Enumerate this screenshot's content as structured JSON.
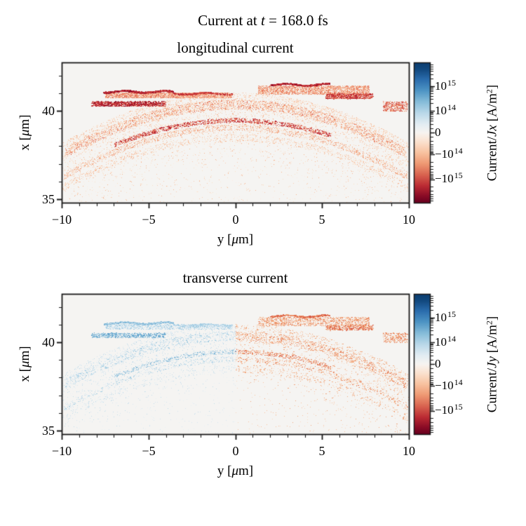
{
  "figure": {
    "suptitle": {
      "prefix": "Current at ",
      "var": "t",
      "suffix": " = 168.0 fs"
    }
  },
  "colors": {
    "background": "#ffffff",
    "plot_bg": "#f5f4f2",
    "spine": "#1a1a1a",
    "text": "#000000",
    "colormap_name": "RdBu (blue = positive, red = negative)",
    "palette_neg": [
      "#fceadd",
      "#fadcc6",
      "#f8c8a9",
      "#f4ac85",
      "#ee8a64",
      "#e06450",
      "#cb3e3c",
      "#b2182b",
      "#8a0a25"
    ],
    "palette_blue": [
      "#e4eff6",
      "#d2e5f0",
      "#b9d7e9",
      "#9ac8e0",
      "#77b1d4",
      "#4f97c7"
    ],
    "palette_pos": [
      "#fceadd",
      "#f9d6bd",
      "#f6bd97",
      "#f09e72",
      "#e57853",
      "#d65542"
    ]
  },
  "chart_data": [
    {
      "type": "scatter",
      "title": "longitudinal current",
      "sign": "negative",
      "pos_boost": 0,
      "x_axis": {
        "label_pre": "y [",
        "label_mu": "μ",
        "label_post": "m]",
        "range": [
          -10,
          10
        ],
        "major_ticks": [
          -10,
          -5,
          0,
          5,
          10
        ],
        "tick_labels": [
          "−10",
          "−5",
          "0",
          "5",
          "10"
        ],
        "minor_step": 1
      },
      "y_axis": {
        "label_pre": "x [",
        "label_mu": "μ",
        "label_post": "m]",
        "range": [
          34.8,
          42.75
        ],
        "major_ticks": [
          35,
          40
        ],
        "tick_labels": [
          "35",
          "40"
        ],
        "minor_step": 1
      },
      "colorbar": {
        "label": {
          "prefix": "Current/",
          "var": "Jx",
          "unit_pre": " [A/m",
          "unit_sup": "2",
          "unit_post": "]"
        },
        "scale": "symlog",
        "values": [
          1000000000000000.0,
          100000000000000.0,
          0,
          -100000000000000.0,
          -1000000000000000.0
        ],
        "ticks": [
          {
            "base": "10",
            "exp": "15"
          },
          {
            "base": "10",
            "exp": "14"
          },
          {
            "base": "0",
            "exp": ""
          },
          {
            "base": "−10",
            "exp": "14"
          },
          {
            "base": "−10",
            "exp": "15"
          }
        ],
        "colormap": "RdBu"
      },
      "arc": {
        "apex": 41.35,
        "curv": 0.0285
      },
      "structures": [
        {
          "type": "slab",
          "y": [
            -7.5,
            -0.2
          ],
          "x": [
            40.75,
            41.05
          ],
          "n": 2400,
          "i": [
            2,
            5
          ]
        },
        {
          "type": "edge",
          "y": [
            -7.6,
            -3.6
          ],
          "x0": 41.1,
          "jit": 0.1,
          "n": 800,
          "i": [
            6,
            8
          ]
        },
        {
          "type": "edge",
          "y": [
            -3.6,
            -0.2
          ],
          "x0": 41.0,
          "jit": 0.08,
          "n": 450,
          "i": [
            5,
            7
          ]
        },
        {
          "type": "slab",
          "y": [
            1.3,
            7.7
          ],
          "x": [
            40.95,
            41.45
          ],
          "n": 2400,
          "i": [
            2,
            5
          ]
        },
        {
          "type": "edge",
          "y": [
            2.0,
            5.4
          ],
          "x0": 41.5,
          "jit": 0.09,
          "n": 700,
          "i": [
            6,
            8
          ]
        },
        {
          "type": "slab",
          "y": [
            5.2,
            7.9
          ],
          "x": [
            40.7,
            41.0
          ],
          "n": 900,
          "i": [
            4,
            7
          ]
        },
        {
          "type": "slab",
          "y": [
            -8.3,
            -4.0
          ],
          "x": [
            40.28,
            40.55
          ],
          "n": 1300,
          "i": [
            5,
            8
          ]
        },
        {
          "type": "slab",
          "y": [
            8.5,
            9.9
          ],
          "x": [
            40.0,
            40.55
          ],
          "n": 450,
          "i": [
            3,
            6
          ]
        },
        {
          "type": "arcband",
          "y": [
            -9.8,
            9.8
          ],
          "off": [
            -1.25,
            -0.7
          ],
          "n": 3200,
          "i": [
            1,
            5
          ]
        },
        {
          "type": "arcband",
          "y": [
            -7.0,
            5.5
          ],
          "off": [
            -2.0,
            -1.75
          ],
          "n": 1500,
          "i": [
            4,
            7
          ]
        },
        {
          "type": "arcband",
          "y": [
            -9.9,
            9.9
          ],
          "off": [
            -2.45,
            -2.1
          ],
          "n": 1600,
          "i": [
            1,
            4
          ]
        },
        {
          "type": "arcband",
          "y": [
            -10,
            10
          ],
          "off": [
            -3.05,
            -2.65
          ],
          "n": 900,
          "i": [
            1,
            3
          ]
        },
        {
          "type": "diffuse",
          "y": [
            -10,
            10
          ],
          "gap": 0.3,
          "decay": 1.3,
          "floor": 34.85,
          "n": 5200,
          "i": [
            0,
            3
          ]
        },
        {
          "type": "uniform",
          "y": [
            -10,
            10
          ],
          "x": [
            34.85,
            38.3
          ],
          "gap": 0.4,
          "n": 650,
          "i": [
            0,
            2
          ]
        }
      ]
    },
    {
      "type": "scatter",
      "title": "transverse current",
      "sign": "signed",
      "pos_boost": 1,
      "x_axis": {
        "label_pre": "y [",
        "label_mu": "μ",
        "label_post": "m]",
        "range": [
          -10,
          10
        ],
        "major_ticks": [
          -10,
          -5,
          0,
          5,
          10
        ],
        "tick_labels": [
          "−10",
          "−5",
          "0",
          "5",
          "10"
        ],
        "minor_step": 1
      },
      "y_axis": {
        "label_pre": "x [",
        "label_mu": "μ",
        "label_post": "m]",
        "range": [
          34.8,
          42.75
        ],
        "major_ticks": [
          35,
          40
        ],
        "tick_labels": [
          "35",
          "40"
        ],
        "minor_step": 1
      },
      "colorbar": {
        "label": {
          "prefix": "Current/",
          "var": "Jy",
          "unit_pre": " [A/m",
          "unit_sup": "2",
          "unit_post": "]"
        },
        "scale": "symlog",
        "values": [
          1000000000000000.0,
          100000000000000.0,
          0,
          -100000000000000.0,
          -1000000000000000.0
        ],
        "ticks": [
          {
            "base": "10",
            "exp": "15"
          },
          {
            "base": "10",
            "exp": "14"
          },
          {
            "base": "0",
            "exp": ""
          },
          {
            "base": "−10",
            "exp": "14"
          },
          {
            "base": "−10",
            "exp": "15"
          }
        ],
        "colormap": "RdBu"
      },
      "arc": {
        "apex": 41.35,
        "curv": 0.0285
      },
      "structures": [
        {
          "type": "slab",
          "y": [
            -7.5,
            -0.2
          ],
          "x": [
            40.75,
            41.05
          ],
          "n": 1300,
          "i": [
            0,
            3
          ]
        },
        {
          "type": "edge",
          "y": [
            -7.6,
            -3.6
          ],
          "x0": 41.1,
          "jit": 0.1,
          "n": 450,
          "i": [
            2,
            4
          ]
        },
        {
          "type": "edge",
          "y": [
            -3.6,
            -0.2
          ],
          "x0": 41.0,
          "jit": 0.08,
          "n": 250,
          "i": [
            1,
            3
          ]
        },
        {
          "type": "slab",
          "y": [
            1.3,
            7.7
          ],
          "x": [
            40.95,
            41.45
          ],
          "n": 1300,
          "i": [
            0,
            3
          ]
        },
        {
          "type": "edge",
          "y": [
            2.0,
            5.4
          ],
          "x0": 41.5,
          "jit": 0.09,
          "n": 400,
          "i": [
            2,
            4
          ]
        },
        {
          "type": "slab",
          "y": [
            5.2,
            7.9
          ],
          "x": [
            40.7,
            41.0
          ],
          "n": 500,
          "i": [
            1,
            4
          ]
        },
        {
          "type": "slab",
          "y": [
            -8.3,
            -4.0
          ],
          "x": [
            40.28,
            40.55
          ],
          "n": 700,
          "i": [
            2,
            5
          ]
        },
        {
          "type": "slab",
          "y": [
            8.5,
            9.9
          ],
          "x": [
            40.0,
            40.55
          ],
          "n": 250,
          "i": [
            1,
            3
          ]
        },
        {
          "type": "arcband",
          "y": [
            -9.8,
            9.8
          ],
          "off": [
            -1.25,
            -0.7
          ],
          "n": 1800,
          "i": [
            0,
            3
          ]
        },
        {
          "type": "arcband",
          "y": [
            -7.0,
            5.5
          ],
          "off": [
            -2.0,
            -1.75
          ],
          "n": 850,
          "i": [
            1,
            4
          ]
        },
        {
          "type": "arcband",
          "y": [
            -9.9,
            9.9
          ],
          "off": [
            -2.45,
            -2.1
          ],
          "n": 900,
          "i": [
            0,
            3
          ]
        },
        {
          "type": "arcband",
          "y": [
            -10,
            10
          ],
          "off": [
            -3.05,
            -2.65
          ],
          "n": 500,
          "i": [
            0,
            2
          ]
        },
        {
          "type": "diffuse",
          "y": [
            -10,
            10
          ],
          "gap": 0.3,
          "decay": 1.3,
          "floor": 34.85,
          "n": 2900,
          "i": [
            0,
            2
          ]
        },
        {
          "type": "uniform",
          "y": [
            -10,
            10
          ],
          "x": [
            34.85,
            38.3
          ],
          "gap": 0.4,
          "n": 380,
          "i": [
            0,
            1
          ]
        }
      ]
    }
  ]
}
